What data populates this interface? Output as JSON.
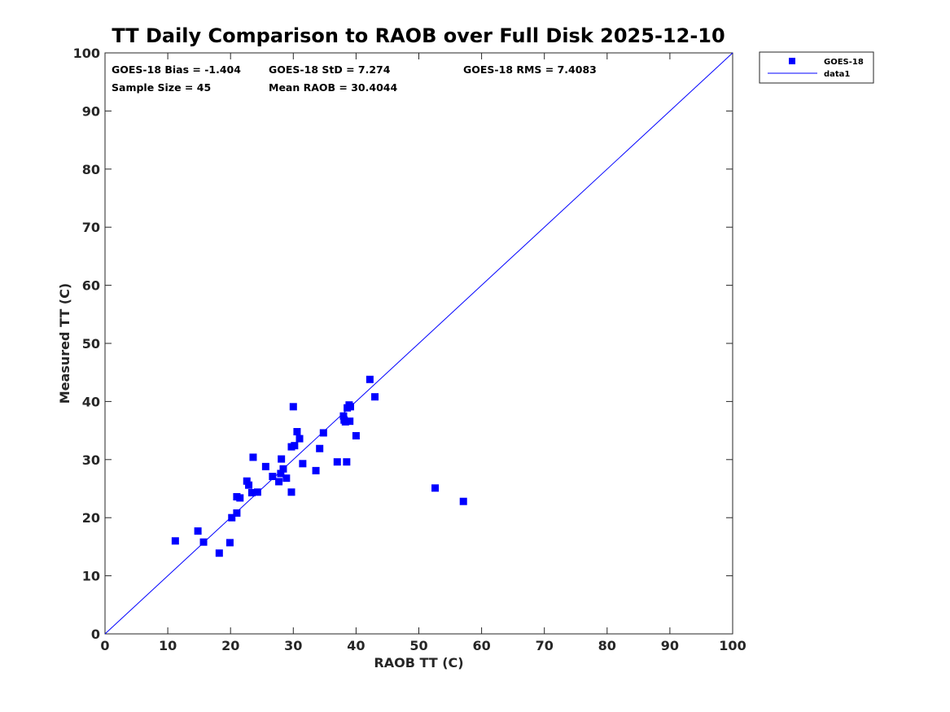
{
  "chart_data": {
    "type": "scatter",
    "title": "TT Daily Comparison to RAOB over Full Disk 2025-12-10",
    "xlabel": "RAOB TT (C)",
    "ylabel": "Measured TT (C)",
    "xlim": [
      0,
      100
    ],
    "ylim": [
      0,
      100
    ],
    "xticks": [
      0,
      10,
      20,
      30,
      40,
      50,
      60,
      70,
      80,
      90,
      100
    ],
    "yticks": [
      0,
      10,
      20,
      30,
      40,
      50,
      60,
      70,
      80,
      90,
      100
    ],
    "grid": false,
    "legend_position": "top-right-outside",
    "stats": [
      "GOES-18 Bias = -1.404",
      "GOES-18 StD = 7.274",
      "GOES-18 RMS = 7.4083",
      "Sample Size = 45",
      "Mean RAOB = 30.4044"
    ],
    "series": [
      {
        "name": "GOES-18",
        "kind": "marker",
        "marker": "square",
        "color": "#0000ff",
        "points": [
          [
            11.2,
            16.0
          ],
          [
            14.8,
            17.7
          ],
          [
            15.7,
            15.8
          ],
          [
            18.2,
            13.9
          ],
          [
            19.9,
            15.7
          ],
          [
            20.2,
            20.0
          ],
          [
            21.0,
            20.8
          ],
          [
            21.0,
            23.6
          ],
          [
            21.5,
            23.4
          ],
          [
            22.6,
            26.3
          ],
          [
            22.9,
            25.6
          ],
          [
            23.4,
            24.3
          ],
          [
            23.6,
            30.4
          ],
          [
            24.3,
            24.4
          ],
          [
            25.6,
            28.8
          ],
          [
            26.7,
            27.1
          ],
          [
            27.7,
            26.2
          ],
          [
            28.0,
            27.6
          ],
          [
            28.1,
            30.1
          ],
          [
            28.4,
            28.4
          ],
          [
            28.9,
            26.8
          ],
          [
            29.7,
            24.4
          ],
          [
            29.7,
            32.2
          ],
          [
            30.0,
            39.1
          ],
          [
            30.2,
            32.4
          ],
          [
            30.6,
            34.8
          ],
          [
            31.0,
            33.6
          ],
          [
            31.5,
            29.3
          ],
          [
            33.6,
            28.1
          ],
          [
            34.2,
            31.9
          ],
          [
            34.8,
            34.6
          ],
          [
            37.0,
            29.6
          ],
          [
            38.0,
            37.5
          ],
          [
            38.1,
            36.8
          ],
          [
            38.3,
            36.5
          ],
          [
            38.5,
            29.6
          ],
          [
            38.6,
            38.9
          ],
          [
            38.9,
            39.4
          ],
          [
            39.0,
            36.6
          ],
          [
            39.1,
            39.1
          ],
          [
            40.0,
            34.1
          ],
          [
            42.2,
            43.8
          ],
          [
            43.0,
            40.8
          ],
          [
            52.6,
            25.1
          ],
          [
            57.1,
            22.8
          ]
        ]
      },
      {
        "name": "data1",
        "kind": "line",
        "color": "#0000ff",
        "points": [
          [
            0,
            0
          ],
          [
            100,
            100
          ]
        ]
      }
    ]
  }
}
